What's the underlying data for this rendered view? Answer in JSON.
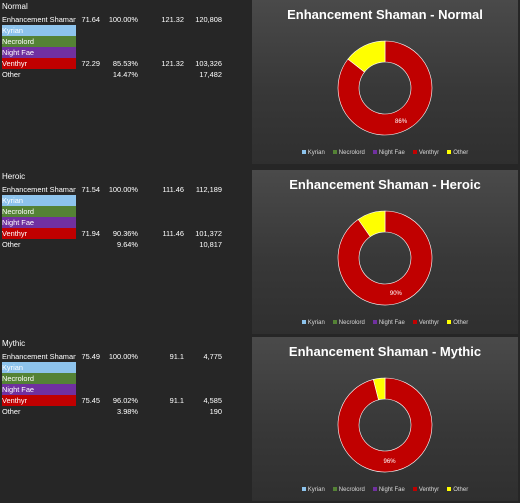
{
  "legend": [
    {
      "label": "Kyrian",
      "color": "#8dc3ec"
    },
    {
      "label": "Necrolord",
      "color": "#548235"
    },
    {
      "label": "Night Fae",
      "color": "#7030a0"
    },
    {
      "label": "Venthyr",
      "color": "#c00000"
    },
    {
      "label": "Other",
      "color": "#ffff00"
    }
  ],
  "sections": [
    {
      "difficulty": "Normal",
      "rows": [
        {
          "name": "Enhancement Shaman",
          "v1": "71.64",
          "v2": "100.00%",
          "v3": "121.32",
          "v4": "120,808"
        },
        {
          "name": "Kyrian",
          "v1": "",
          "v2": "",
          "v3": "",
          "v4": ""
        },
        {
          "name": "Necrolord",
          "v1": "",
          "v2": "",
          "v3": "",
          "v4": ""
        },
        {
          "name": "Night Fae",
          "v1": "",
          "v2": "",
          "v3": "",
          "v4": ""
        },
        {
          "name": "Venthyr",
          "v1": "72.29",
          "v2": "85.53%",
          "v3": "121.32",
          "v4": "103,326"
        },
        {
          "name": "Other",
          "v1": "",
          "v2": "14.47%",
          "v3": "",
          "v4": "17,482"
        }
      ]
    },
    {
      "difficulty": "Heroic",
      "rows": [
        {
          "name": "Enhancement Shaman",
          "v1": "71.54",
          "v2": "100.00%",
          "v3": "111.46",
          "v4": "112,189"
        },
        {
          "name": "Kyrian",
          "v1": "",
          "v2": "",
          "v3": "",
          "v4": ""
        },
        {
          "name": "Necrolord",
          "v1": "",
          "v2": "",
          "v3": "",
          "v4": ""
        },
        {
          "name": "Night Fae",
          "v1": "",
          "v2": "",
          "v3": "",
          "v4": ""
        },
        {
          "name": "Venthyr",
          "v1": "71.94",
          "v2": "90.36%",
          "v3": "111.46",
          "v4": "101,372"
        },
        {
          "name": "Other",
          "v1": "",
          "v2": "9.64%",
          "v3": "",
          "v4": "10,817"
        }
      ]
    },
    {
      "difficulty": "Mythic",
      "rows": [
        {
          "name": "Enhancement Shaman",
          "v1": "75.49",
          "v2": "100.00%",
          "v3": "91.1",
          "v4": "4,775"
        },
        {
          "name": "Kyrian",
          "v1": "",
          "v2": "",
          "v3": "",
          "v4": ""
        },
        {
          "name": "Necrolord",
          "v1": "",
          "v2": "",
          "v3": "",
          "v4": ""
        },
        {
          "name": "Night Fae",
          "v1": "",
          "v2": "",
          "v3": "",
          "v4": ""
        },
        {
          "name": "Venthyr",
          "v1": "75.45",
          "v2": "96.02%",
          "v3": "91.1",
          "v4": "4,585"
        },
        {
          "name": "Other",
          "v1": "",
          "v2": "3.98%",
          "v3": "",
          "v4": "190"
        }
      ]
    }
  ],
  "chart_data": [
    {
      "type": "pie",
      "title": "Enhancement Shaman - Normal",
      "categories": [
        "Kyrian",
        "Necrolord",
        "Night Fae",
        "Venthyr",
        "Other"
      ],
      "values": [
        0,
        0,
        0,
        85.53,
        14.47
      ],
      "data_labels": [
        "",
        "",
        "",
        "86%",
        ""
      ],
      "legend_position": "bottom"
    },
    {
      "type": "pie",
      "title": "Enhancement Shaman - Heroic",
      "categories": [
        "Kyrian",
        "Necrolord",
        "Night Fae",
        "Venthyr",
        "Other"
      ],
      "values": [
        0,
        0,
        0,
        90.36,
        9.64
      ],
      "data_labels": [
        "",
        "",
        "",
        "90%",
        ""
      ],
      "legend_position": "bottom"
    },
    {
      "type": "pie",
      "title": "Enhancement Shaman - Mythic",
      "categories": [
        "Kyrian",
        "Necrolord",
        "Night Fae",
        "Venthyr",
        "Other"
      ],
      "values": [
        0,
        0,
        0,
        96.02,
        3.98
      ],
      "data_labels": [
        "",
        "",
        "",
        "96%",
        ""
      ],
      "legend_position": "bottom"
    }
  ]
}
